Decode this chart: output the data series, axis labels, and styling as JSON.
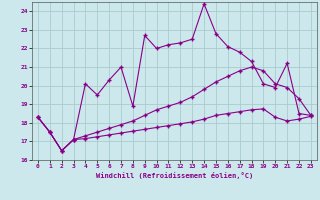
{
  "xlabel": "Windchill (Refroidissement éolien,°C)",
  "background_color": "#cde8ec",
  "grid_color": "#aacccc",
  "line_color": "#880088",
  "xlim": [
    -0.5,
    23.5
  ],
  "ylim": [
    16,
    24.5
  ],
  "yticks": [
    16,
    17,
    18,
    19,
    20,
    21,
    22,
    23,
    24
  ],
  "xticks": [
    0,
    1,
    2,
    3,
    4,
    5,
    6,
    7,
    8,
    9,
    10,
    11,
    12,
    13,
    14,
    15,
    16,
    17,
    18,
    19,
    20,
    21,
    22,
    23
  ],
  "series1_x": [
    0,
    1,
    2,
    3,
    4,
    5,
    6,
    7,
    8,
    9,
    10,
    11,
    12,
    13,
    14,
    15,
    16,
    17,
    18,
    19,
    20,
    21,
    22,
    23
  ],
  "series1_y": [
    18.3,
    17.5,
    16.5,
    17.1,
    20.1,
    19.5,
    20.3,
    21.0,
    18.9,
    22.7,
    22.0,
    22.2,
    22.3,
    22.5,
    24.4,
    22.8,
    22.1,
    21.8,
    21.3,
    20.1,
    19.9,
    21.2,
    18.5,
    18.4
  ],
  "series2_x": [
    0,
    1,
    2,
    3,
    4,
    5,
    6,
    7,
    8,
    9,
    10,
    11,
    12,
    13,
    14,
    15,
    16,
    17,
    18,
    19,
    20,
    21,
    22,
    23
  ],
  "series2_y": [
    18.3,
    17.5,
    16.5,
    17.1,
    17.3,
    17.5,
    17.7,
    17.9,
    18.1,
    18.4,
    18.7,
    18.9,
    19.1,
    19.4,
    19.8,
    20.2,
    20.5,
    20.8,
    21.0,
    20.8,
    20.1,
    19.9,
    19.3,
    18.4
  ],
  "series3_x": [
    0,
    1,
    2,
    3,
    4,
    5,
    6,
    7,
    8,
    9,
    10,
    11,
    12,
    13,
    14,
    15,
    16,
    17,
    18,
    19,
    20,
    21,
    22,
    23
  ],
  "series3_y": [
    18.3,
    17.5,
    16.5,
    17.1,
    17.15,
    17.25,
    17.35,
    17.45,
    17.55,
    17.65,
    17.75,
    17.85,
    17.95,
    18.05,
    18.2,
    18.4,
    18.5,
    18.6,
    18.7,
    18.75,
    18.3,
    18.1,
    18.2,
    18.35
  ]
}
